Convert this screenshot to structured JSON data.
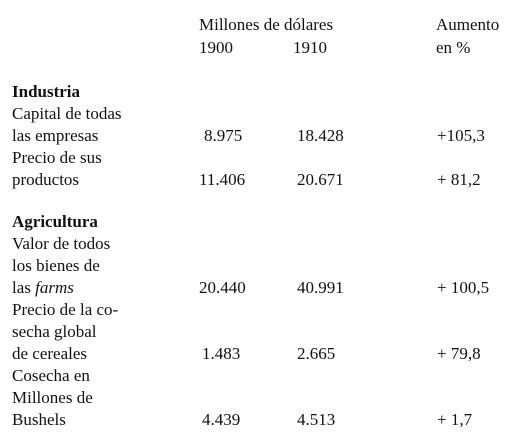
{
  "header": {
    "group_label": "Millones de dólares",
    "year_1900": "1900",
    "year_1910": "1910",
    "increase_line1": "Aumento",
    "increase_line2": "en %"
  },
  "industria": {
    "heading": "Industria",
    "capital": {
      "label_line1": "Capital de todas",
      "label_line2": "las empresas",
      "v1900": "8.975",
      "v1910": "18.428",
      "increase": "+105,3"
    },
    "precio": {
      "label_line1": "Precio de sus",
      "label_line2": "productos",
      "v1900": "11.406",
      "v1910": "20.671",
      "increase": "+ 81,2"
    }
  },
  "agricultura": {
    "heading": "Agricultura",
    "valor": {
      "label_line1": "Valor de todos",
      "label_line2": "los bienes de",
      "label_line3_prefix": "las",
      "label_line3_italic": "farms",
      "v1900": "20.440",
      "v1910": "40.991",
      "increase": "+ 100,5"
    },
    "cosecha_precio": {
      "label_line1": "Precio de la co-",
      "label_line2": "secha global",
      "label_line3": "de cereales",
      "v1900": "1.483",
      "v1910": "2.665",
      "increase": "+ 79,8"
    },
    "cosecha_bushels": {
      "label_line1": "Cosecha en",
      "label_line2": "Millones de",
      "label_line3": "Bushels",
      "v1900": "4.439",
      "v1910": "4.513",
      "increase": "+ 1,7"
    }
  }
}
